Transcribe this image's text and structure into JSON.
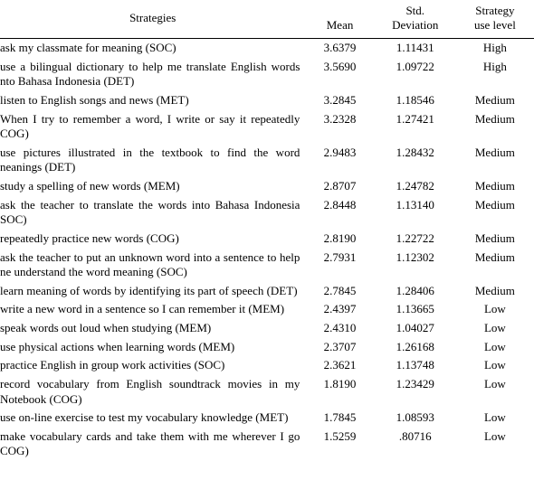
{
  "header": {
    "strategies": "Strategies",
    "mean": "Mean",
    "std_line1": "Std.",
    "std_line2": "Deviation",
    "level_line1": "Strategy",
    "level_line2": "use level"
  },
  "rows": [
    {
      "strategy": " ask my classmate for meaning (SOC)",
      "mean": "3.6379",
      "std": "1.11431",
      "level": "High"
    },
    {
      "strategy": " use a bilingual dictionary to help me translate English words nto Bahasa Indonesia (DET)",
      "mean": "3.5690",
      "std": "1.09722",
      "level": "High"
    },
    {
      "strategy": " listen to English songs and news (MET)",
      "mean": "3.2845",
      "std": "1.18546",
      "level": "Medium"
    },
    {
      "strategy": "When I try to remember a word, I write or say it repeatedly COG)",
      "mean": "3.2328",
      "std": "1.27421",
      "level": "Medium"
    },
    {
      "strategy": " use pictures illustrated in the textbook to find the word neanings (DET)",
      "mean": "2.9483",
      "std": "1.28432",
      "level": "Medium"
    },
    {
      "strategy": " study a spelling of new words (MEM)",
      "mean": "2.8707",
      "std": "1.24782",
      "level": "Medium"
    },
    {
      "strategy": " ask the teacher to translate the words into Bahasa Indonesia SOC)",
      "mean": "2.8448",
      "std": "1.13140",
      "level": "Medium"
    },
    {
      "strategy": " repeatedly practice new words (COG)",
      "mean": "2.8190",
      "std": "1.22722",
      "level": "Medium"
    },
    {
      "strategy": " ask the teacher to put an unknown word into a sentence to help ne understand the word meaning (SOC)",
      "mean": "2.7931",
      "std": "1.12302",
      "level": "Medium"
    },
    {
      "strategy": " learn meaning of words by identifying its part of speech (DET)",
      "mean": "2.7845",
      "std": "1.28406",
      "level": "Medium"
    },
    {
      "strategy": " write a new word in a sentence so I can remember it (MEM)",
      "mean": "2.4397",
      "std": "1.13665",
      "level": "Low"
    },
    {
      "strategy": " speak words out loud when studying (MEM)",
      "mean": "2.4310",
      "std": "1.04027",
      "level": "Low"
    },
    {
      "strategy": " use physical actions when learning words (MEM)",
      "mean": "2.3707",
      "std": "1.26168",
      "level": "Low"
    },
    {
      "strategy": " practice English in group work activities (SOC)",
      "mean": "2.3621",
      "std": "1.13748",
      "level": "Low"
    },
    {
      "strategy": " record vocabulary from English soundtrack movies in my Notebook (COG)",
      "mean": "1.8190",
      "std": "1.23429",
      "level": "Low"
    },
    {
      "strategy": " use on-line exercise to test my vocabulary knowledge (MET)",
      "mean": "1.7845",
      "std": "1.08593",
      "level": "Low"
    },
    {
      "strategy": " make vocabulary cards and take them with me wherever I go COG)",
      "mean": "1.5259",
      "std": ".80716",
      "level": "Low"
    }
  ]
}
